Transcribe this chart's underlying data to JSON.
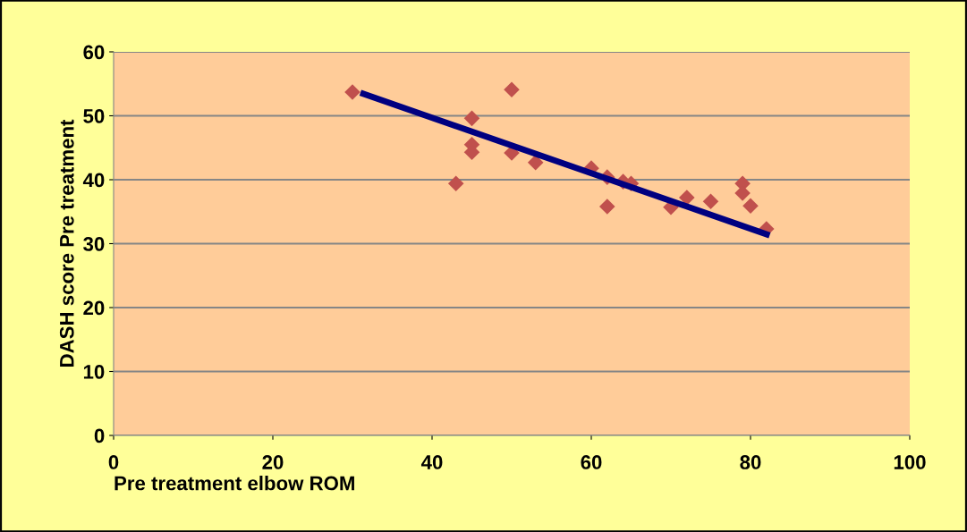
{
  "chart_data": {
    "type": "scatter",
    "xlabel": "Pre treatment elbow ROM",
    "ylabel": "DASH score Pre treatment",
    "xlim": [
      0,
      100
    ],
    "xticks": [
      0,
      20,
      40,
      60,
      80,
      100
    ],
    "ylim": [
      0,
      60
    ],
    "yticks": [
      0,
      10,
      20,
      30,
      40,
      50,
      60
    ],
    "grid": "y",
    "legend": false,
    "series": [
      {
        "marker": "diamond",
        "color": "#c0504d",
        "x": [
          30,
          45,
          45,
          45,
          43,
          50,
          50,
          53,
          60,
          62,
          62,
          64,
          65,
          70,
          72,
          75,
          79,
          79,
          80,
          82
        ],
        "values": [
          53.7,
          49.6,
          45.5,
          44.3,
          39.4,
          54.1,
          44.2,
          42.7,
          41.8,
          40.4,
          35.8,
          39.7,
          39.4,
          35.7,
          37.2,
          36.6,
          39.4,
          37.9,
          35.9,
          32.3
        ]
      },
      {
        "type": "line",
        "color": "#000080",
        "x": [
          31,
          82.4
        ],
        "values": [
          53.6,
          31.3
        ]
      }
    ]
  }
}
